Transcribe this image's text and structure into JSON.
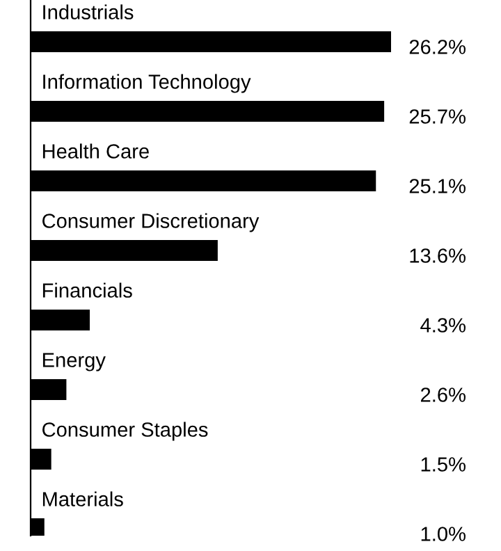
{
  "chart_data": {
    "type": "bar",
    "orientation": "horizontal",
    "categories": [
      "Industrials",
      "Information Technology",
      "Health Care",
      "Consumer Discretionary",
      "Financials",
      "Energy",
      "Consumer Staples",
      "Materials"
    ],
    "values": [
      26.2,
      25.7,
      25.1,
      13.6,
      4.3,
      2.6,
      1.5,
      1.0
    ],
    "value_labels": [
      "26.2%",
      "25.7%",
      "25.1%",
      "13.6%",
      "4.3%",
      "2.6%",
      "1.5%",
      "1.0%"
    ],
    "color": "#000000"
  }
}
